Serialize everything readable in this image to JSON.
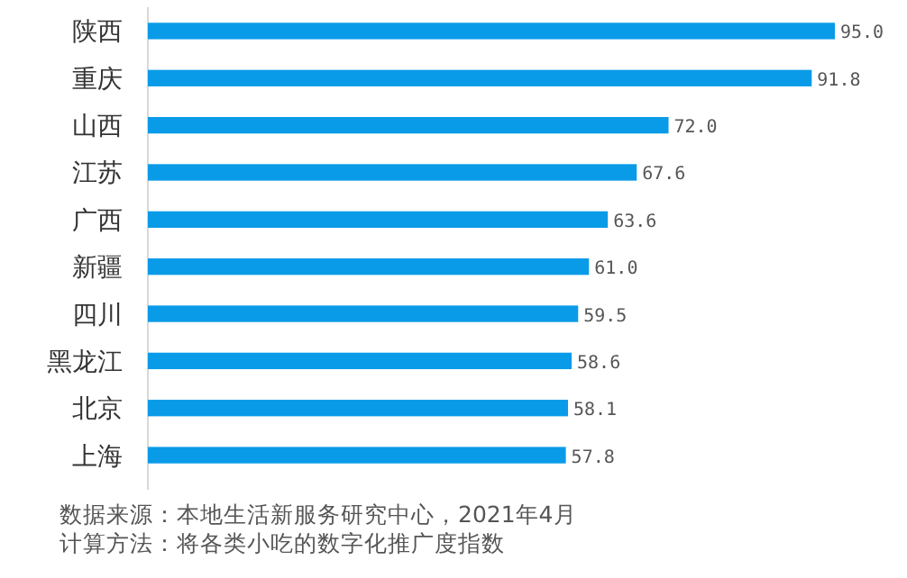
{
  "chart_data": {
    "type": "bar",
    "orientation": "horizontal",
    "categories": [
      "陕西",
      "重庆",
      "山西",
      "江苏",
      "广西",
      "新疆",
      "四川",
      "黑龙江",
      "北京",
      "上海"
    ],
    "values": [
      95.0,
      91.8,
      72.0,
      67.6,
      63.6,
      61.0,
      59.5,
      58.6,
      58.1,
      57.8
    ],
    "value_labels": [
      "95.0",
      "91.8",
      "72.0",
      "67.6",
      "63.6",
      "61.0",
      "59.5",
      "58.6",
      "58.1",
      "57.8"
    ],
    "color": "#0a9be8",
    "tick_labels": "y",
    "annotations": [
      "数据来源：本地生活新服务研究中心，2021年4月",
      "计算方法：将各类小吃的数字化推广度指数"
    ]
  }
}
